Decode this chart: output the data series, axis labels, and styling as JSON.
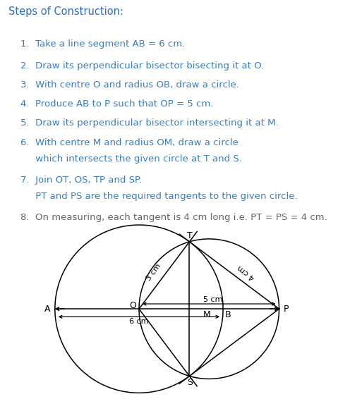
{
  "title_text": "Steps of Construction:",
  "steps": [
    {
      "text": "1.  Take a line segment AB = 6 cm.",
      "indent": 0.06,
      "color": "blue"
    },
    {
      "text": "2.  Draw its perpendicular bisector bisecting it at O.",
      "indent": 0.06,
      "color": "blue"
    },
    {
      "text": "3.  With centre O and radius OB, draw a circle.",
      "indent": 0.06,
      "color": "blue"
    },
    {
      "text": "4.  Produce AB to P such that OP = 5 cm.",
      "indent": 0.06,
      "color": "blue"
    },
    {
      "text": "5.  Draw its perpendicular bisector intersecting it at M.",
      "indent": 0.06,
      "color": "blue"
    },
    {
      "text": "6.  With centre M and radius OM, draw a circle",
      "indent": 0.06,
      "color": "blue"
    },
    {
      "text": "     which intersects the given circle at T and S.",
      "indent": 0.06,
      "color": "blue"
    },
    {
      "text": "7.  Join OT, OS, TP and SP.",
      "indent": 0.06,
      "color": "blue"
    },
    {
      "text": "     PT and PS are the required tangents to the given circle.",
      "indent": 0.06,
      "color": "blue"
    },
    {
      "text": "8.  On measuring, each tangent is 4 cm long i.e. PT = PS = 4 cm.",
      "indent": 0.06,
      "color": "gray"
    }
  ],
  "title_color": "#2f6dbf",
  "blue_color": "#3a7dbf",
  "gray_color": "#666666",
  "bg_color": "#ffffff",
  "O": [
    0.0,
    0.0
  ],
  "A": [
    -3.0,
    0.0
  ],
  "B": [
    3.0,
    0.0
  ],
  "P": [
    5.0,
    0.0
  ],
  "M": [
    2.5,
    0.0
  ],
  "r1": 3.0,
  "r2": 2.5,
  "label_fontsize": 9,
  "annot_fontsize": 8
}
